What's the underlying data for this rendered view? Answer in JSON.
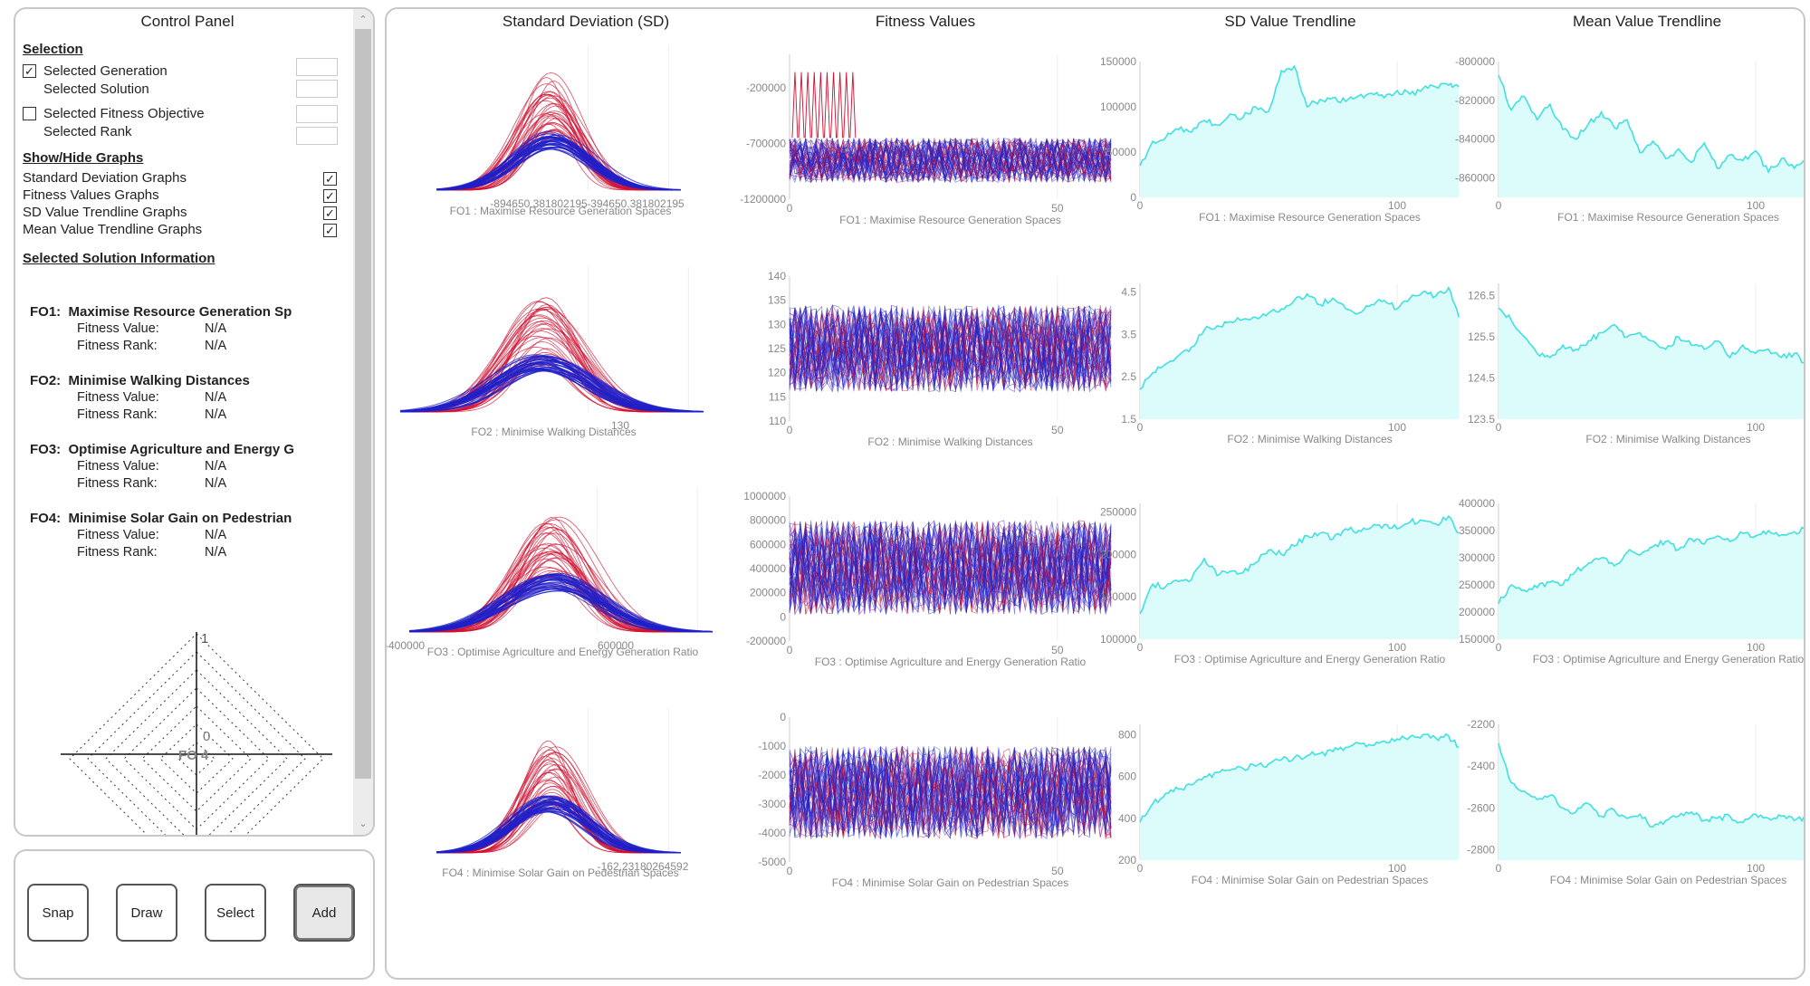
{
  "control_panel": {
    "title": "Control Panel",
    "selection": {
      "heading": "Selection",
      "selected_generation": {
        "label": "Selected Generation",
        "checked": true
      },
      "selected_solution": {
        "label": "Selected Solution"
      },
      "selected_fitness_objective": {
        "label": "Selected Fitness Objective",
        "checked": false
      },
      "selected_rank": {
        "label": "Selected Rank"
      }
    },
    "show_hide": {
      "heading": "Show/Hide Graphs",
      "items": [
        {
          "label": "Standard Deviation Graphs",
          "checked": true
        },
        {
          "label": "Fitness Values Graphs",
          "checked": true
        },
        {
          "label": "SD Value Trendline Graphs",
          "checked": true
        },
        {
          "label": "Mean Value Trendline Graphs",
          "checked": true
        }
      ]
    },
    "solution_info": {
      "heading": "Selected Solution Information",
      "value_label": "Fitness Value:",
      "rank_label": "Fitness Rank:",
      "objectives": [
        {
          "code": "FO1:",
          "name": "Maximise Resource Generation Sp",
          "value": "N/A",
          "rank": "N/A"
        },
        {
          "code": "FO2:",
          "name": "Minimise Walking Distances",
          "value": "N/A",
          "rank": "N/A"
        },
        {
          "code": "FO3:",
          "name": "Optimise Agriculture and Energy G",
          "value": "N/A",
          "rank": "N/A"
        },
        {
          "code": "FO4:",
          "name": "Minimise Solar Gain on Pedestrian",
          "value": "N/A",
          "rank": "N/A"
        }
      ]
    },
    "radar": {
      "top_label": "1",
      "center_label": "0",
      "axis_label": "FO 4"
    }
  },
  "buttons": [
    {
      "label": "Snap",
      "active": false
    },
    {
      "label": "Draw",
      "active": false
    },
    {
      "label": "Select",
      "active": false
    },
    {
      "label": "Add",
      "active": true
    }
  ],
  "column_titles": [
    "Standard Deviation (SD)",
    "Fitness Values",
    "SD Value Trendline",
    "Mean Value Trendline"
  ],
  "colors": {
    "red": "#d01030",
    "blue": "#2020c8",
    "cyan": "#40e0e0",
    "cyan_fill": "#dcfcfc"
  },
  "chart_data": [
    {
      "type": "line",
      "title": "Standard Deviation (SD)",
      "objective": "FO1 : Maximise Resource Generation Spaces",
      "tick_labels": [
        "-894650.381802195",
        "-394650.381802195"
      ]
    },
    {
      "type": "line",
      "title": "Standard Deviation (SD)",
      "objective": "FO2 : Minimise Walking Distances",
      "tick_labels": [
        "130"
      ]
    },
    {
      "type": "line",
      "title": "Standard Deviation (SD)",
      "objective": "FO3 : Optimise Agriculture and Energy Generation Ratio",
      "tick_labels": [
        "-400000",
        "600000"
      ]
    },
    {
      "type": "line",
      "title": "Standard Deviation (SD)",
      "objective": "FO4 : Minimise Solar Gain on Pedestrian Spaces",
      "tick_labels": [
        "-162.23180264592"
      ]
    },
    {
      "type": "line",
      "title": "Fitness Values",
      "objective": "FO1 : Maximise Resource Generation Spaces",
      "xlim": [
        0,
        60
      ],
      "ylim": [
        -1200000,
        100000
      ],
      "y_ticks": [
        -200000,
        -700000,
        -1200000
      ],
      "y_tick_labels": [
        "-200000",
        "-700000",
        "-1200000"
      ],
      "x_ticks": [
        0,
        50
      ],
      "band": [
        -1050000,
        -650000
      ]
    },
    {
      "type": "line",
      "title": "Fitness Values",
      "objective": "FO2 : Minimise Walking Distances",
      "xlim": [
        0,
        60
      ],
      "ylim": [
        110,
        140
      ],
      "y_ticks": [
        140,
        135,
        130,
        125,
        120,
        115,
        110
      ],
      "y_tick_labels": [
        "140",
        "135",
        "130",
        "125",
        "120",
        "115",
        "110"
      ],
      "x_ticks": [
        0,
        50
      ],
      "band": [
        116,
        134
      ]
    },
    {
      "type": "line",
      "title": "Fitness Values",
      "objective": "FO3 : Optimise Agriculture and Energy Generation Ratio",
      "xlim": [
        0,
        60
      ],
      "ylim": [
        -200000,
        1000000
      ],
      "y_ticks": [
        1000000,
        800000,
        600000,
        400000,
        200000,
        0,
        -200000
      ],
      "y_tick_labels": [
        "1000000",
        "800000",
        "600000",
        "400000",
        "200000",
        "0",
        "-200000"
      ],
      "x_ticks": [
        0,
        50
      ],
      "band": [
        20000,
        800000
      ]
    },
    {
      "type": "line",
      "title": "Fitness Values",
      "objective": "FO4 : Minimise Solar Gain on Pedestrian Spaces",
      "xlim": [
        0,
        60
      ],
      "ylim": [
        -5000,
        0
      ],
      "y_ticks": [
        0,
        -1000,
        -2000,
        -3000,
        -4000,
        -5000
      ],
      "y_tick_labels": [
        "0",
        "-1000",
        "-2000",
        "-3000",
        "-4000",
        "-5000"
      ],
      "x_ticks": [
        0,
        50
      ],
      "band": [
        -4200,
        -1000
      ]
    },
    {
      "type": "area",
      "title": "SD Value Trendline",
      "objective": "FO1 : Maximise Resource Generation Spaces",
      "xlim": [
        0,
        125
      ],
      "ylim": [
        0,
        150000
      ],
      "y_ticks": [
        150000,
        100000,
        50000,
        0
      ],
      "y_tick_labels": [
        "150000",
        "100000",
        "50000",
        "0"
      ],
      "x_ticks": [
        0,
        100
      ],
      "x": [
        0,
        5,
        10,
        15,
        20,
        25,
        30,
        35,
        40,
        45,
        50,
        55,
        60,
        65,
        70,
        75,
        80,
        85,
        90,
        95,
        100,
        105,
        110,
        115,
        120,
        124
      ],
      "y": [
        35000,
        62000,
        66000,
        75000,
        72000,
        85000,
        80000,
        92000,
        88000,
        100000,
        95000,
        140000,
        145000,
        100000,
        108000,
        110000,
        106000,
        112000,
        115000,
        110000,
        118000,
        114000,
        120000,
        122000,
        124000,
        122000
      ]
    },
    {
      "type": "area",
      "title": "SD Value Trendline",
      "objective": "FO2 : Minimise Walking Distances",
      "xlim": [
        0,
        125
      ],
      "ylim": [
        1.5,
        4.7
      ],
      "y_ticks": [
        4.5,
        3.5,
        2.5,
        1.5
      ],
      "y_tick_labels": [
        "4.5",
        "3.5",
        "2.5",
        "1.5"
      ],
      "x_ticks": [
        0,
        100
      ],
      "x": [
        0,
        5,
        10,
        15,
        20,
        25,
        30,
        35,
        40,
        45,
        50,
        55,
        60,
        65,
        70,
        75,
        80,
        85,
        90,
        95,
        100,
        105,
        110,
        115,
        120,
        124
      ],
      "y": [
        2.2,
        2.6,
        2.8,
        3.0,
        3.2,
        3.6,
        3.7,
        3.8,
        3.85,
        3.9,
        4.0,
        4.1,
        4.3,
        4.45,
        4.2,
        4.35,
        4.1,
        4.0,
        4.2,
        4.3,
        4.1,
        4.35,
        4.5,
        4.4,
        4.6,
        3.9
      ]
    },
    {
      "type": "area",
      "title": "SD Value Trendline",
      "objective": "FO3 : Optimise Agriculture and Energy Generation Ratio",
      "xlim": [
        0,
        125
      ],
      "ylim": [
        100000,
        260000
      ],
      "y_ticks": [
        250000,
        200000,
        150000,
        100000
      ],
      "y_tick_labels": [
        "250000",
        "200000",
        "150000",
        "100000"
      ],
      "x_ticks": [
        0,
        100
      ],
      "x": [
        0,
        5,
        10,
        15,
        20,
        25,
        30,
        35,
        40,
        45,
        50,
        55,
        60,
        65,
        70,
        75,
        80,
        85,
        90,
        95,
        100,
        105,
        110,
        115,
        120,
        124
      ],
      "y": [
        130000,
        165000,
        162000,
        168000,
        170000,
        195000,
        175000,
        180000,
        178000,
        190000,
        205000,
        200000,
        210000,
        222000,
        225000,
        218000,
        230000,
        228000,
        232000,
        235000,
        230000,
        238000,
        240000,
        236000,
        245000,
        225000
      ]
    },
    {
      "type": "area",
      "title": "SD Value Trendline",
      "objective": "FO4 : Minimise Solar Gain on Pedestrian Spaces",
      "xlim": [
        0,
        125
      ],
      "ylim": [
        200,
        850
      ],
      "y_ticks": [
        800,
        600,
        400,
        200
      ],
      "y_tick_labels": [
        "800",
        "600",
        "400",
        "200"
      ],
      "x_ticks": [
        0,
        100
      ],
      "x": [
        0,
        5,
        10,
        15,
        20,
        25,
        30,
        35,
        40,
        45,
        50,
        55,
        60,
        65,
        70,
        75,
        80,
        85,
        90,
        95,
        100,
        105,
        110,
        115,
        120,
        124
      ],
      "y": [
        380,
        470,
        520,
        540,
        560,
        600,
        620,
        630,
        640,
        650,
        660,
        680,
        690,
        700,
        710,
        720,
        740,
        760,
        750,
        770,
        780,
        790,
        800,
        785,
        795,
        740
      ]
    },
    {
      "type": "area",
      "title": "Mean Value Trendline",
      "objective": "FO1 : Maximise Resource Generation Spaces",
      "xlim": [
        0,
        125
      ],
      "ylim": [
        -870000,
        -800000
      ],
      "y_ticks": [
        -800000,
        -820000,
        -840000,
        -860000
      ],
      "y_tick_labels": [
        "-800000",
        "-820000",
        "-840000",
        "-860000"
      ],
      "x_ticks": [
        0,
        100
      ],
      "x": [
        0,
        5,
        10,
        15,
        20,
        25,
        30,
        35,
        40,
        45,
        50,
        55,
        60,
        65,
        70,
        75,
        80,
        85,
        90,
        95,
        100,
        105,
        110,
        115,
        120,
        124
      ],
      "y": [
        -807000,
        -825000,
        -818000,
        -830000,
        -822000,
        -835000,
        -840000,
        -832000,
        -826000,
        -834000,
        -830000,
        -847000,
        -841000,
        -850000,
        -845000,
        -852000,
        -842000,
        -855000,
        -848000,
        -851000,
        -846000,
        -857000,
        -850000,
        -855000,
        -848000,
        -838000
      ]
    },
    {
      "type": "area",
      "title": "Mean Value Trendline",
      "objective": "FO2 : Minimise Walking Distances",
      "xlim": [
        0,
        125
      ],
      "ylim": [
        123.5,
        126.8
      ],
      "y_ticks": [
        126.5,
        125.5,
        124.5,
        123.5
      ],
      "y_tick_labels": [
        "126.5",
        "125.5",
        "124.5",
        "123.5"
      ],
      "x_ticks": [
        0,
        100
      ],
      "x": [
        0,
        5,
        10,
        15,
        20,
        25,
        30,
        35,
        40,
        45,
        50,
        55,
        60,
        65,
        70,
        75,
        80,
        85,
        90,
        95,
        100,
        105,
        110,
        115,
        120,
        124
      ],
      "y": [
        126.2,
        125.9,
        125.5,
        125.1,
        125.0,
        125.3,
        125.2,
        125.4,
        125.6,
        125.8,
        125.5,
        125.6,
        125.4,
        125.2,
        125.5,
        125.3,
        125.2,
        125.4,
        125.0,
        125.3,
        125.1,
        125.2,
        125.0,
        125.1,
        124.8,
        124.3
      ]
    },
    {
      "type": "area",
      "title": "Mean Value Trendline",
      "objective": "FO3 : Optimise Agriculture and Energy Generation Ratio",
      "xlim": [
        0,
        125
      ],
      "ylim": [
        150000,
        400000
      ],
      "y_ticks": [
        400000,
        350000,
        300000,
        250000,
        200000,
        150000
      ],
      "y_tick_labels": [
        "400000",
        "350000",
        "300000",
        "250000",
        "200000",
        "150000"
      ],
      "x_ticks": [
        0,
        100
      ],
      "x": [
        0,
        5,
        10,
        15,
        20,
        25,
        30,
        35,
        40,
        45,
        50,
        55,
        60,
        65,
        70,
        75,
        80,
        85,
        90,
        95,
        100,
        105,
        110,
        115,
        120,
        124
      ],
      "y": [
        215000,
        250000,
        240000,
        245000,
        255000,
        250000,
        275000,
        290000,
        300000,
        285000,
        310000,
        305000,
        320000,
        330000,
        315000,
        335000,
        325000,
        340000,
        330000,
        345000,
        340000,
        350000,
        342000,
        348000,
        352000,
        315000
      ]
    },
    {
      "type": "area",
      "title": "Mean Value Trendline",
      "objective": "FO4 : Minimise Solar Gain on Pedestrian Spaces",
      "xlim": [
        0,
        125
      ],
      "ylim": [
        -2850,
        -2200
      ],
      "y_ticks": [
        -2200,
        -2400,
        -2600,
        -2800
      ],
      "y_tick_labels": [
        "-2200",
        "-2400",
        "-2600",
        "-2800"
      ],
      "x_ticks": [
        0,
        100
      ],
      "x": [
        0,
        5,
        10,
        15,
        20,
        25,
        30,
        35,
        40,
        45,
        50,
        55,
        60,
        65,
        70,
        75,
        80,
        85,
        90,
        95,
        100,
        105,
        110,
        115,
        120,
        124
      ],
      "y": [
        -2290,
        -2480,
        -2520,
        -2560,
        -2540,
        -2600,
        -2620,
        -2580,
        -2640,
        -2610,
        -2650,
        -2630,
        -2690,
        -2660,
        -2640,
        -2620,
        -2660,
        -2650,
        -2640,
        -2670,
        -2630,
        -2650,
        -2640,
        -2660,
        -2640,
        -2810
      ]
    }
  ]
}
